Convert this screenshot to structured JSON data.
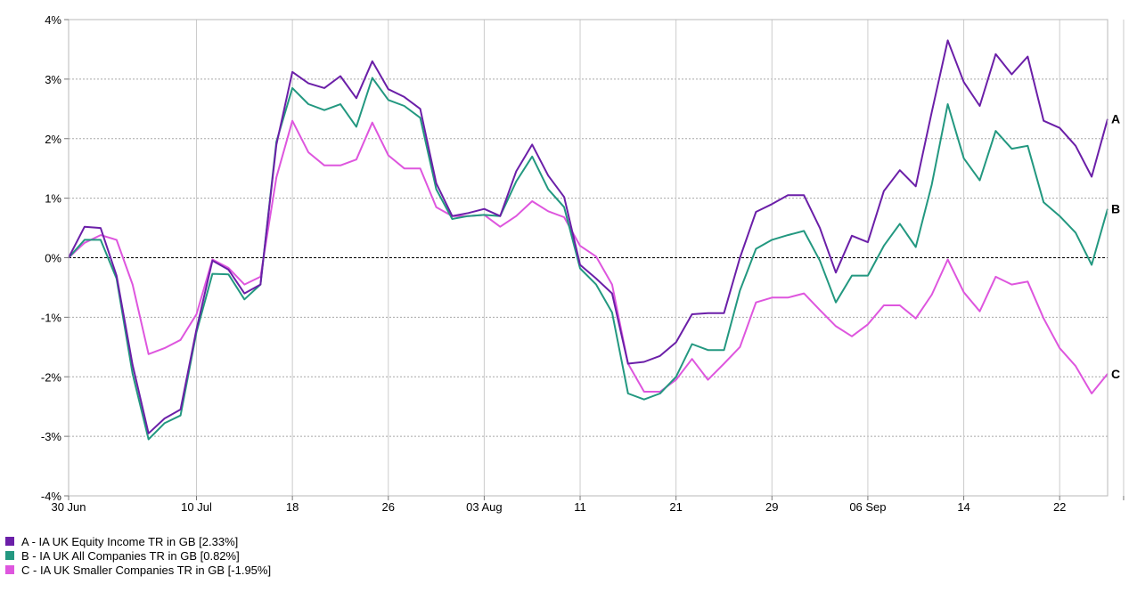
{
  "chart_data": {
    "type": "line",
    "ylim": [
      -4,
      4
    ],
    "y_ticks": [
      {
        "value": 4,
        "label": "4%"
      },
      {
        "value": 3,
        "label": "3%"
      },
      {
        "value": 2,
        "label": "2%"
      },
      {
        "value": 1,
        "label": "1%"
      },
      {
        "value": 0,
        "label": "0%"
      },
      {
        "value": -1,
        "label": "-1%"
      },
      {
        "value": -2,
        "label": "-2%"
      },
      {
        "value": -3,
        "label": "-3%"
      },
      {
        "value": -4,
        "label": "-4%"
      }
    ],
    "x_ticks": [
      {
        "index": 0,
        "label": "30 Jun"
      },
      {
        "index": 8,
        "label": "10 Jul"
      },
      {
        "index": 14,
        "label": "18"
      },
      {
        "index": 20,
        "label": "26"
      },
      {
        "index": 26,
        "label": "03 Aug"
      },
      {
        "index": 32,
        "label": "11"
      },
      {
        "index": 38,
        "label": "21"
      },
      {
        "index": 44,
        "label": "29"
      },
      {
        "index": 50,
        "label": "06 Sep"
      },
      {
        "index": 56,
        "label": "14"
      },
      {
        "index": 62,
        "label": "22"
      },
      {
        "index": 66,
        "label": ""
      }
    ],
    "grid": true,
    "zero_line": true,
    "series": [
      {
        "id": "A",
        "name": "A - IA UK Equity Income TR in GB [2.33%]",
        "color": "#6b1fa8",
        "end_label": "A",
        "values": [
          0,
          0.52,
          0.5,
          -0.3,
          -1.8,
          -2.95,
          -2.7,
          -2.55,
          -1.2,
          -0.05,
          -0.2,
          -0.6,
          -0.45,
          1.9,
          3.12,
          2.93,
          2.85,
          3.05,
          2.68,
          3.3,
          2.83,
          2.7,
          2.5,
          1.25,
          0.7,
          0.75,
          0.82,
          0.7,
          1.45,
          1.9,
          1.38,
          1.02,
          -0.12,
          -0.35,
          -0.6,
          -1.78,
          -1.75,
          -1.65,
          -1.42,
          -0.95,
          -0.93,
          -0.93,
          0,
          0.77,
          0.9,
          1.05,
          1.05,
          0.5,
          -0.25,
          0.37,
          0.26,
          1.12,
          1.47,
          1.2,
          2.45,
          3.65,
          2.95,
          2.55,
          3.42,
          3.08,
          3.38,
          2.3,
          2.18,
          1.88,
          1.36,
          2.33
        ]
      },
      {
        "id": "B",
        "name": "B - IA UK All Companies TR in GB [0.82%]",
        "color": "#239880",
        "end_label": "B",
        "values": [
          0,
          0.3,
          0.3,
          -0.35,
          -1.95,
          -3.05,
          -2.78,
          -2.65,
          -1.25,
          -0.27,
          -0.28,
          -0.7,
          -0.45,
          1.95,
          2.85,
          2.58,
          2.48,
          2.58,
          2.2,
          3.02,
          2.65,
          2.55,
          2.35,
          1.15,
          0.65,
          0.7,
          0.72,
          0.7,
          1.28,
          1.7,
          1.15,
          0.85,
          -0.18,
          -0.45,
          -0.92,
          -2.28,
          -2.38,
          -2.28,
          -2.0,
          -1.45,
          -1.55,
          -1.55,
          -0.55,
          0.15,
          0.3,
          0.38,
          0.45,
          -0.05,
          -0.75,
          -0.3,
          -0.3,
          0.2,
          0.57,
          0.18,
          1.23,
          2.58,
          1.67,
          1.3,
          2.13,
          1.83,
          1.88,
          0.93,
          0.7,
          0.42,
          -0.12,
          0.82
        ]
      },
      {
        "id": "C",
        "name": "C - IA UK Smaller Companies TR in GB [-1.95%]",
        "color": "#de56de",
        "end_label": "C",
        "values": [
          0,
          0.25,
          0.38,
          0.3,
          -0.45,
          -1.62,
          -1.52,
          -1.38,
          -0.95,
          -0.03,
          -0.17,
          -0.45,
          -0.32,
          1.35,
          2.3,
          1.77,
          1.55,
          1.55,
          1.65,
          2.27,
          1.72,
          1.5,
          1.5,
          0.85,
          0.7,
          0.7,
          0.72,
          0.52,
          0.7,
          0.95,
          0.78,
          0.68,
          0.2,
          0.02,
          -0.45,
          -1.78,
          -2.25,
          -2.25,
          -2.05,
          -1.7,
          -2.05,
          -1.78,
          -1.5,
          -0.75,
          -0.67,
          -0.67,
          -0.6,
          -0.88,
          -1.15,
          -1.32,
          -1.12,
          -0.8,
          -0.8,
          -1.02,
          -0.62,
          -0.03,
          -0.58,
          -0.9,
          -0.32,
          -0.45,
          -0.4,
          -1.02,
          -1.52,
          -1.82,
          -2.28,
          -1.95
        ]
      }
    ]
  }
}
